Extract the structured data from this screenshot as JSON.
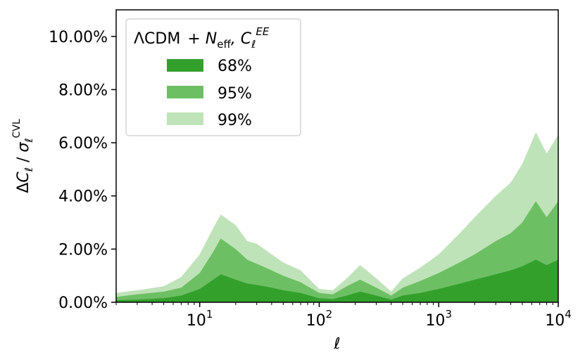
{
  "chart_data": {
    "type": "area",
    "x_scale": "log",
    "xlim": [
      2,
      10000
    ],
    "ylim": [
      0,
      11
    ],
    "ylabel": "ΔC_ℓ / σ_ℓ^CVL",
    "xlabel": "ℓ",
    "ytick_labels": [
      "0.00%",
      "2.00%",
      "4.00%",
      "6.00%",
      "8.00%",
      "10.00%"
    ],
    "ytick_values": [
      0,
      2,
      4,
      6,
      8,
      10
    ],
    "xtick_values": [
      10,
      100,
      1000,
      10000
    ],
    "xtick_labels": [
      {
        "base": "10",
        "exp": "1"
      },
      {
        "base": "10",
        "exp": "2"
      },
      {
        "base": "10",
        "exp": "3"
      },
      {
        "base": "10",
        "exp": "4"
      }
    ],
    "legend": {
      "placement": "top-left",
      "title_parts": [
        "ΛCDM",
        "+ N",
        "eff",
        ", C",
        "ℓ",
        "EE"
      ],
      "entries": [
        "68%",
        "95%",
        "99%"
      ]
    },
    "colors": {
      "band68": "#33a02c",
      "band95": "#6dbf64",
      "band99": "#bfe3b8"
    },
    "x": [
      2,
      3,
      5,
      7,
      10,
      13,
      15,
      20,
      25,
      30,
      40,
      50,
      70,
      100,
      130,
      170,
      220,
      300,
      400,
      500,
      700,
      1000,
      1500,
      2000,
      3000,
      4000,
      5000,
      6500,
      8000,
      10000
    ],
    "series": [
      {
        "name": "99%",
        "values": [
          0.35,
          0.45,
          0.6,
          0.95,
          1.8,
          2.8,
          3.3,
          2.9,
          2.3,
          2.2,
          1.8,
          1.5,
          1.2,
          0.5,
          0.45,
          0.9,
          1.4,
          0.9,
          0.4,
          0.9,
          1.3,
          1.8,
          2.6,
          3.2,
          4.0,
          4.5,
          5.2,
          6.4,
          5.6,
          6.3
        ]
      },
      {
        "name": "95%",
        "values": [
          0.2,
          0.3,
          0.4,
          0.55,
          1.1,
          1.9,
          2.4,
          2.0,
          1.6,
          1.45,
          1.2,
          1.0,
          0.75,
          0.35,
          0.3,
          0.6,
          0.85,
          0.55,
          0.25,
          0.55,
          0.8,
          1.1,
          1.5,
          1.8,
          2.3,
          2.6,
          3.0,
          3.8,
          3.2,
          3.8
        ]
      },
      {
        "name": "68%",
        "values": [
          0.08,
          0.1,
          0.15,
          0.25,
          0.5,
          0.85,
          1.05,
          0.85,
          0.7,
          0.65,
          0.55,
          0.45,
          0.35,
          0.15,
          0.12,
          0.25,
          0.4,
          0.25,
          0.1,
          0.25,
          0.35,
          0.5,
          0.7,
          0.85,
          1.05,
          1.2,
          1.35,
          1.6,
          1.4,
          1.6
        ]
      }
    ]
  }
}
